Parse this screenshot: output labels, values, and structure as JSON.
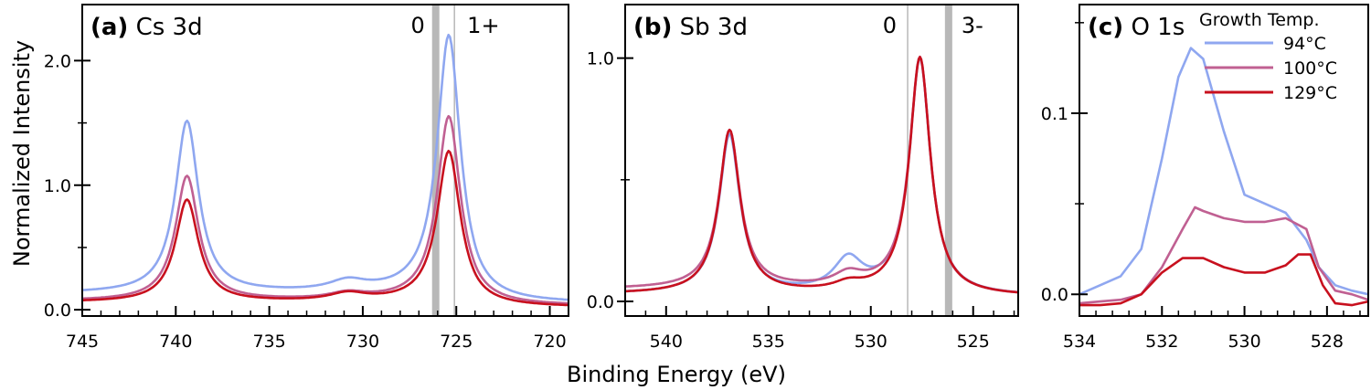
{
  "figure": {
    "ylabel": "Normalized Intensity",
    "xlabel": "Binding Energy (eV)",
    "legend_title": "Growth Temp.",
    "series_colors": {
      "94°C": "#8fa7f0",
      "100°C": "#c06092",
      "129°C": "#c8101e"
    },
    "marker_color": "#b8b8b8"
  },
  "chart_data": [
    {
      "type": "line",
      "panel": "(a)",
      "title": "Cs 3d",
      "xlim": [
        745,
        719
      ],
      "ylim": [
        -0.05,
        2.45
      ],
      "xticks": [
        745,
        740,
        735,
        730,
        725,
        720
      ],
      "yticks": [
        0.0,
        1.0,
        2.0
      ],
      "ytick_labels": [
        "0.0",
        "1.0",
        "2.0"
      ],
      "markers": [
        {
          "x": 726.1,
          "label": "0",
          "band": true
        },
        {
          "x": 725.1,
          "label": "1+",
          "band": false
        }
      ],
      "peaks": [
        {
          "x0": 739.4,
          "w": 0.75
        },
        {
          "x0": 730.8,
          "w": 1.2
        },
        {
          "x0": 725.4,
          "w": 0.75
        }
      ],
      "series": [
        {
          "name": "94°C",
          "base": 0.13,
          "tail": 0.05,
          "amps": [
            1.38,
            0.08,
            2.07
          ]
        },
        {
          "name": "100°C",
          "base": 0.07,
          "tail": 0.03,
          "amps": [
            1.0,
            0.05,
            1.48
          ]
        },
        {
          "name": "129°C",
          "base": 0.06,
          "tail": 0.02,
          "amps": [
            0.82,
            0.06,
            1.21
          ]
        }
      ]
    },
    {
      "type": "line",
      "panel": "(b)",
      "title": "Sb 3d",
      "xlim": [
        542,
        522.8
      ],
      "ylim": [
        -0.06,
        1.22
      ],
      "xticks": [
        540,
        535,
        530,
        525
      ],
      "yticks": [
        0.0,
        1.0
      ],
      "ytick_labels": [
        "0.0",
        "1.0"
      ],
      "markers": [
        {
          "x": 528.2,
          "label": "0",
          "band": false
        },
        {
          "x": 526.2,
          "label": "3-",
          "band": true
        }
      ],
      "peaks": [
        {
          "x0": 536.9,
          "w": 0.62
        },
        {
          "x0": 531.1,
          "w": 0.85
        },
        {
          "x0": 527.6,
          "w": 0.62
        }
      ],
      "series": [
        {
          "name": "94°C",
          "base": 0.03,
          "tail": 0.02,
          "amps": [
            0.65,
            0.13,
            0.96
          ]
        },
        {
          "name": "100°C",
          "base": 0.05,
          "tail": 0.02,
          "amps": [
            0.65,
            0.05,
            0.95
          ]
        },
        {
          "name": "129°C",
          "base": 0.03,
          "tail": 0.02,
          "amps": [
            0.67,
            0.03,
            0.97
          ]
        }
      ]
    },
    {
      "type": "line",
      "panel": "(c)",
      "title": "O 1s",
      "xlim": [
        534,
        527
      ],
      "ylim": [
        -0.012,
        0.16
      ],
      "xticks": [
        534,
        532,
        530,
        528
      ],
      "yticks": [
        0.0,
        0.1
      ],
      "minor_yticks": [
        0.05,
        0.15
      ],
      "ytick_labels": [
        "0.0",
        "0.1"
      ],
      "series": [
        {
          "name": "94°C",
          "x": [
            534,
            533.5,
            533,
            532.5,
            532,
            531.6,
            531.3,
            531,
            530.5,
            530,
            529.5,
            529,
            528.5,
            528.2,
            527.8,
            527.4,
            527
          ],
          "y": [
            0.0,
            0.005,
            0.01,
            0.025,
            0.075,
            0.12,
            0.136,
            0.13,
            0.09,
            0.055,
            0.05,
            0.045,
            0.03,
            0.015,
            0.005,
            0.002,
            0.0
          ]
        },
        {
          "name": "100°C",
          "x": [
            534,
            533.5,
            533,
            532.5,
            532,
            531.5,
            531.2,
            531,
            530.5,
            530,
            529.5,
            529,
            528.5,
            528.2,
            527.8,
            527.4,
            527
          ],
          "y": [
            -0.005,
            -0.004,
            -0.003,
            0.0,
            0.015,
            0.036,
            0.048,
            0.046,
            0.042,
            0.04,
            0.04,
            0.042,
            0.036,
            0.015,
            0.002,
            0.0,
            -0.003
          ]
        },
        {
          "name": "129°C",
          "x": [
            534,
            533.5,
            533,
            532.5,
            532,
            531.5,
            531,
            530.5,
            530,
            529.5,
            529,
            528.7,
            528.4,
            528.1,
            527.8,
            527.4,
            527
          ],
          "y": [
            -0.006,
            -0.006,
            -0.005,
            0.0,
            0.012,
            0.02,
            0.02,
            0.015,
            0.012,
            0.012,
            0.016,
            0.022,
            0.022,
            0.005,
            -0.005,
            -0.006,
            -0.004
          ]
        }
      ]
    }
  ]
}
